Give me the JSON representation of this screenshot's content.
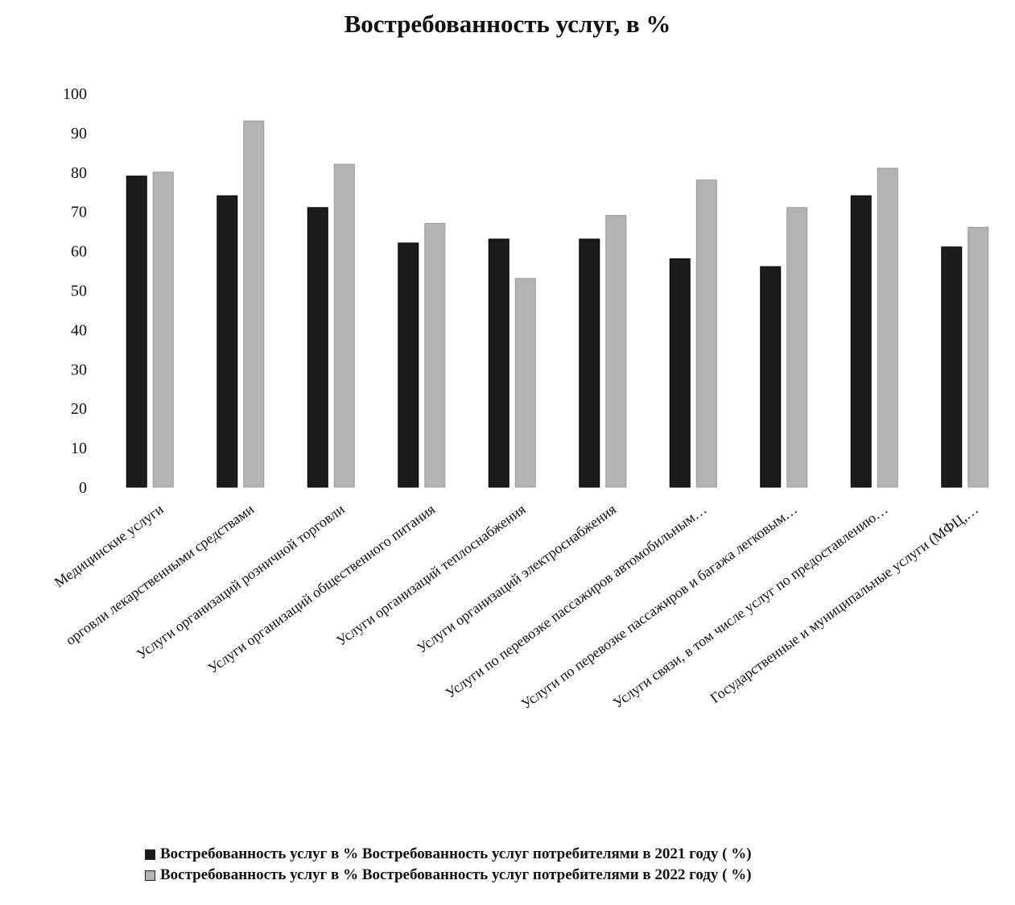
{
  "chart_data": {
    "type": "bar",
    "title": "Востребованность услуг, в %",
    "xlabel": "",
    "ylabel": "",
    "ylim": [
      0,
      100
    ],
    "yticks": [
      0,
      10,
      20,
      30,
      40,
      50,
      60,
      70,
      80,
      90,
      100
    ],
    "grid": false,
    "legend_position": "bottom",
    "categories": [
      "Медицинские услуги",
      "орговли лекарственными средствами",
      "Услуги организаций розничной торговли",
      "Услуги организаций общественного питания",
      "Услуги организаций теплоснабжения",
      "Услуги организаций электроснабжения",
      "Услуги по перевозке пассажиров автомобильным…",
      "Услуги по перевозке пассажиров и багажа легковым…",
      "Услуги связи, в том числе услуг по предоставлению…",
      "Государственные и муниципальные услуги (МФЦ,…"
    ],
    "series": [
      {
        "name": "Востребованность услуг в % Востребованность услуг потребителями в 2021 году ( %)",
        "color": "#1c1c1c",
        "values": [
          79,
          74,
          71,
          62,
          63,
          63,
          58,
          56,
          74,
          61
        ]
      },
      {
        "name": "Востребованность услуг в % Востребованность услуг потребителями в 2022 году ( %)",
        "color": "#b3b3b3",
        "values": [
          80,
          93,
          82,
          67,
          53,
          69,
          78,
          71,
          81,
          66
        ]
      }
    ]
  }
}
